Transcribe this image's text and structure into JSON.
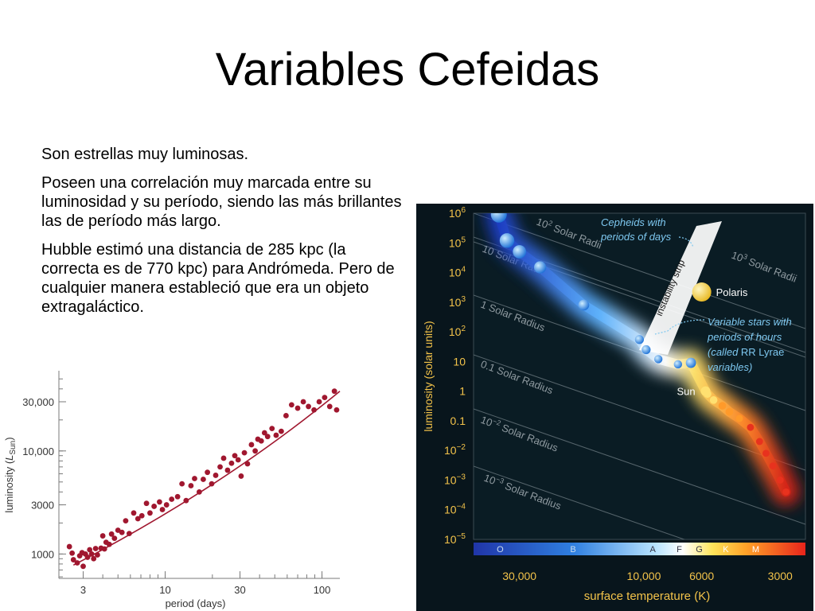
{
  "slide": {
    "title": "Variables Cefeidas",
    "paragraphs": [
      "Son estrellas muy luminosas.",
      "Poseen una correlación muy marcada entre su luminosidad y su período, siendo las más brillantes las de período más largo.",
      "Hubble estimó una distancia de 285 kpc (la correcta es de 770 kpc) para Andrómeda. Pero de cualquier manera estableció que era un objeto extragaláctico."
    ]
  },
  "colors": {
    "point": "#a0172f",
    "fit_line": "#a0172f",
    "hr_background": "#08151c",
    "hr_axis_text": "#f3c34a",
    "hr_annotation": "#7ec8f0"
  },
  "chart_data": [
    {
      "type": "scatter",
      "title": "",
      "xlabel": "period (days)",
      "ylabel_prefix": "luminosity (",
      "ylabel_symbol": "L",
      "ylabel_sub": "Sun",
      "ylabel_suffix": ")",
      "xscale": "log",
      "yscale": "log",
      "xlim": [
        2.1,
        130
      ],
      "ylim": [
        580,
        60000
      ],
      "xticks": [
        3,
        10,
        30,
        100
      ],
      "xtick_labels": [
        "3",
        "10",
        "30",
        "100"
      ],
      "yticks": [
        1000,
        3000,
        10000,
        30000
      ],
      "ytick_labels": [
        "1000",
        "3000",
        "10,000",
        "30,000"
      ],
      "grid": false,
      "fit_line": [
        [
          2.6,
          780
        ],
        [
          130,
          38000
        ]
      ],
      "points": [
        [
          2.45,
          1180
        ],
        [
          2.55,
          1020
        ],
        [
          2.6,
          880
        ],
        [
          2.75,
          820
        ],
        [
          2.85,
          960
        ],
        [
          2.95,
          1030
        ],
        [
          3.0,
          760
        ],
        [
          3.1,
          1000
        ],
        [
          3.2,
          930
        ],
        [
          3.3,
          1100
        ],
        [
          3.4,
          1000
        ],
        [
          3.5,
          900
        ],
        [
          3.6,
          1130
        ],
        [
          3.7,
          980
        ],
        [
          3.9,
          1140
        ],
        [
          4.0,
          1500
        ],
        [
          4.1,
          1120
        ],
        [
          4.2,
          1300
        ],
        [
          4.4,
          1240
        ],
        [
          4.55,
          1560
        ],
        [
          4.75,
          1420
        ],
        [
          5.0,
          1700
        ],
        [
          5.3,
          1620
        ],
        [
          5.6,
          2100
        ],
        [
          5.9,
          1580
        ],
        [
          6.3,
          2500
        ],
        [
          6.7,
          2200
        ],
        [
          7.1,
          2350
        ],
        [
          7.6,
          3100
        ],
        [
          8.0,
          2500
        ],
        [
          8.5,
          2900
        ],
        [
          9.2,
          3200
        ],
        [
          9.6,
          2700
        ],
        [
          10.2,
          3000
        ],
        [
          11.0,
          3400
        ],
        [
          12.0,
          3600
        ],
        [
          12.8,
          4800
        ],
        [
          13.6,
          3300
        ],
        [
          14.6,
          4600
        ],
        [
          15.4,
          5400
        ],
        [
          16.5,
          4000
        ],
        [
          17.5,
          5300
        ],
        [
          18.6,
          6200
        ],
        [
          19.8,
          4800
        ],
        [
          21.0,
          5800
        ],
        [
          22.4,
          7000
        ],
        [
          23.6,
          8500
        ],
        [
          25.0,
          6500
        ],
        [
          26.5,
          7600
        ],
        [
          27.8,
          9000
        ],
        [
          29.2,
          8200
        ],
        [
          30.5,
          5700
        ],
        [
          32.0,
          9600
        ],
        [
          33.5,
          7500
        ],
        [
          35.5,
          11500
        ],
        [
          37.5,
          10000
        ],
        [
          39.0,
          13000
        ],
        [
          41.0,
          12500
        ],
        [
          43.0,
          15000
        ],
        [
          45.0,
          13800
        ],
        [
          48.0,
          16500
        ],
        [
          51.0,
          14200
        ],
        [
          55.0,
          15500
        ],
        [
          59.0,
          22000
        ],
        [
          64.0,
          28000
        ],
        [
          70.0,
          26000
        ],
        [
          76.0,
          30000
        ],
        [
          82.0,
          27000
        ],
        [
          89.0,
          25000
        ],
        [
          96.0,
          30000
        ],
        [
          104.0,
          33000
        ],
        [
          112.0,
          27000
        ],
        [
          120.0,
          38000
        ],
        [
          124.0,
          25000
        ]
      ]
    },
    {
      "type": "scatter",
      "title": "",
      "xlabel": "surface temperature (K)",
      "ylabel": "luminosity (solar units)",
      "xscale": "log-reversed",
      "yscale": "log",
      "xlim": [
        45000,
        2400
      ],
      "ylim": [
        1e-05,
        1000000
      ],
      "xtick_labels": [
        "30,000",
        "10,000",
        "6000",
        "3000"
      ],
      "xticks": [
        30000,
        10000,
        6000,
        3000
      ],
      "ytick_labels": [
        {
          "base": "10",
          "exp": "6"
        },
        {
          "base": "10",
          "exp": "5"
        },
        {
          "base": "10",
          "exp": "4"
        },
        {
          "base": "10",
          "exp": "3"
        },
        {
          "base": "10",
          "exp": "2"
        },
        {
          "base": "10",
          "exp": ""
        },
        {
          "base": "1",
          "exp": ""
        },
        {
          "base": "0.1",
          "exp": ""
        },
        {
          "base": "10",
          "exp": "−2"
        },
        {
          "base": "10",
          "exp": "−3"
        },
        {
          "base": "10",
          "exp": "−4"
        },
        {
          "base": "10",
          "exp": "−5"
        }
      ],
      "spectral_classes": [
        "O",
        "B",
        "A",
        "F",
        "G",
        "K",
        "M"
      ],
      "radius_lines": [
        {
          "label_base": "10",
          "label_exp": "3",
          "label_rest": " Solar Radii"
        },
        {
          "label_base": "10",
          "label_exp": "2",
          "label_rest": " Solar Radii"
        },
        {
          "label_base": "10 Solar Radii",
          "label_exp": "",
          "label_rest": ""
        },
        {
          "label_base": "1 Solar Radius",
          "label_exp": "",
          "label_rest": ""
        },
        {
          "label_base": "0.1 Solar Radius",
          "label_exp": "",
          "label_rest": ""
        },
        {
          "label_base": "10",
          "label_exp": "−2",
          "label_rest": " Solar Radius"
        },
        {
          "label_base": "10",
          "label_exp": "−3",
          "label_rest": " Solar Radius"
        }
      ],
      "annotations": {
        "instability_strip": "instability strip",
        "cepheids_line1": "Cepheids with",
        "cepheids_line2": "periods of days",
        "polaris": "Polaris",
        "sun": "Sun",
        "rr_line1": "Variable stars with",
        "rr_line2": "periods of hours",
        "rr_line3_italic": "(called",
        "rr_line3_plain": " RR Lyrae",
        "rr_line4": "variables)"
      },
      "stars": [
        {
          "t": 36000,
          "l": 900000,
          "size": 1.0
        },
        {
          "t": 33500,
          "l": 120000,
          "size": 0.9
        },
        {
          "t": 30000,
          "l": 50000,
          "size": 0.8
        },
        {
          "t": 25000,
          "l": 15000,
          "size": 0.7
        },
        {
          "t": 17000,
          "l": 800,
          "size": 0.6
        },
        {
          "t": 10400,
          "l": 55,
          "size": 0.45
        },
        {
          "t": 9800,
          "l": 25,
          "size": 0.45
        },
        {
          "t": 8800,
          "l": 12,
          "size": 0.4
        },
        {
          "t": 7400,
          "l": 8,
          "size": 0.4
        },
        {
          "t": 6600,
          "l": 9,
          "size": 0.55
        },
        {
          "t": 5800,
          "l": 1,
          "size": 0.5
        },
        {
          "t": 5700,
          "l": 0.8,
          "size": 0.35
        },
        {
          "t": 5400,
          "l": 0.5,
          "size": 0.35
        },
        {
          "t": 5000,
          "l": 0.32,
          "size": 0.35
        },
        {
          "t": 4700,
          "l": 0.2,
          "size": 0.35
        },
        {
          "t": 4300,
          "l": 0.12,
          "size": 0.3
        },
        {
          "t": 3900,
          "l": 0.06,
          "size": 0.3
        },
        {
          "t": 3600,
          "l": 0.02,
          "size": 0.3
        },
        {
          "t": 3400,
          "l": 0.008,
          "size": 0.3
        },
        {
          "t": 3200,
          "l": 0.003,
          "size": 0.3
        },
        {
          "t": 3000,
          "l": 0.001,
          "size": 0.3
        },
        {
          "t": 2850,
          "l": 0.0004,
          "size": 0.3
        }
      ],
      "polaris": {
        "t": 6000,
        "l": 2200
      },
      "sun_point": {
        "t": 5800,
        "l": 1
      }
    }
  ]
}
